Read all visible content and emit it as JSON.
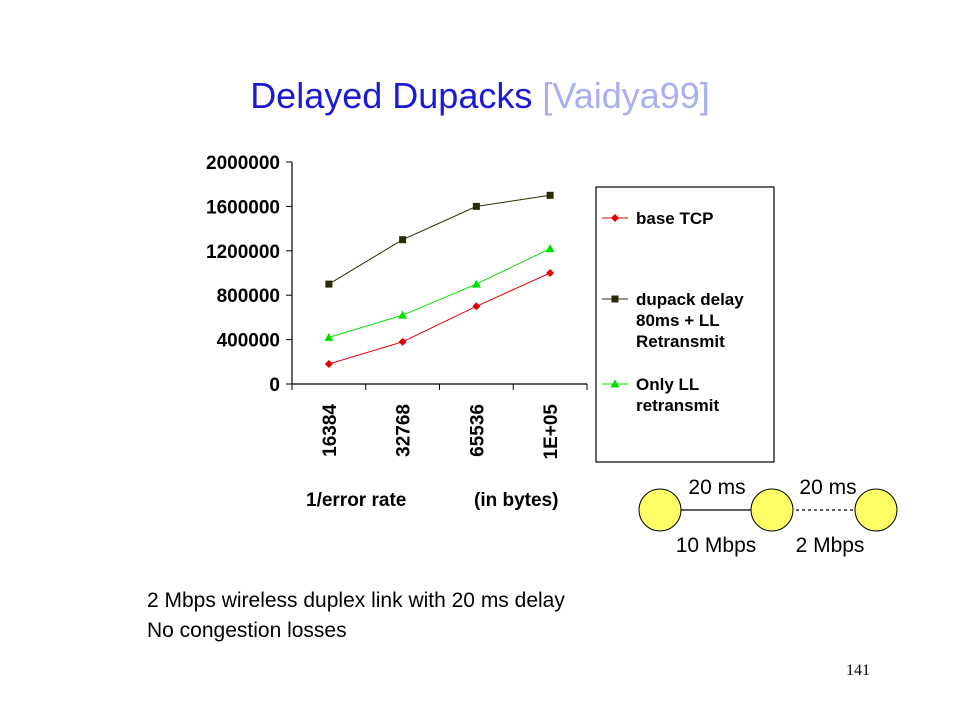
{
  "slide": {
    "title": "Delayed  Dupacks",
    "citation": "[Vaidya99]",
    "notes": [
      "2 Mbps wireless duplex link with 20 ms delay",
      "No congestion losses"
    ],
    "page_number": "141"
  },
  "topology": {
    "delay_left": "20 ms",
    "delay_right": "20 ms",
    "bandwidth_left": "10 Mbps",
    "bandwidth_right": "2 Mbps",
    "node_color": "#ffff66"
  },
  "chart_data": {
    "type": "line",
    "categories": [
      "16384",
      "32768",
      "65536",
      "1E+05"
    ],
    "x_axis_labels": [
      "1/error rate",
      "(in bytes)"
    ],
    "ylabel": "",
    "ylim": [
      0,
      2000000
    ],
    "yticks": [
      "0",
      "400000",
      "800000",
      "1200000",
      "1600000",
      "2000000"
    ],
    "grid": false,
    "legend_position": "right",
    "series": [
      {
        "name": "base TCP",
        "legend_lines": [
          "base TCP"
        ],
        "color": "#e00000",
        "marker": "diamond",
        "values": [
          180000,
          380000,
          700000,
          1000000
        ]
      },
      {
        "name": "dupack delay 80ms + LL Retransmit",
        "legend_lines": [
          "dupack delay",
          "80ms + LL",
          "Retransmit"
        ],
        "color": "#2b2b00",
        "marker": "square",
        "values": [
          900000,
          1300000,
          1600000,
          1700000
        ]
      },
      {
        "name": "Only LL retransmit",
        "legend_lines": [
          "Only LL",
          "retransmit"
        ],
        "color": "#00e000",
        "marker": "triangle",
        "values": [
          420000,
          620000,
          900000,
          1220000
        ]
      }
    ]
  }
}
